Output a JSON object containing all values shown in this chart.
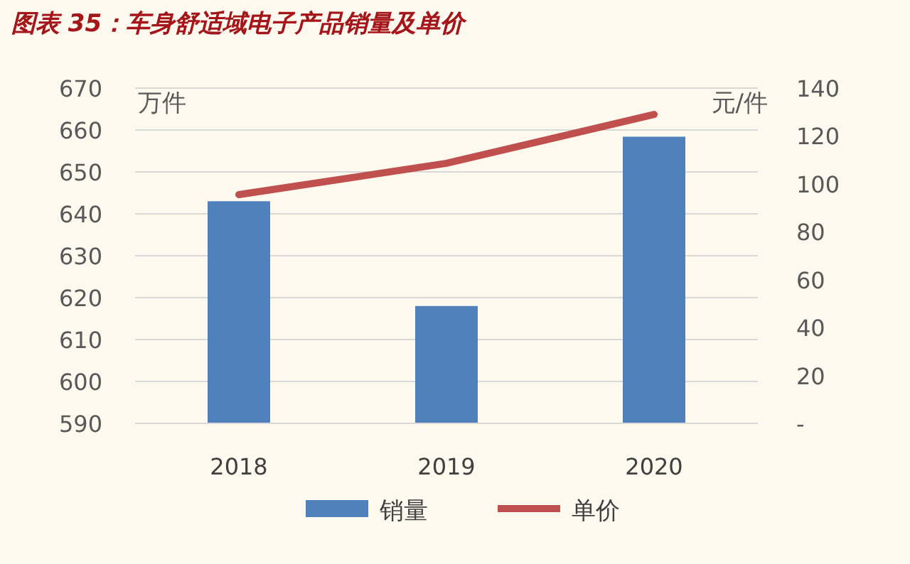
{
  "chart_data": {
    "type": "bar",
    "title": "图表 35：车身舒适域电子产品销量及单价",
    "categories": [
      "2018",
      "2019",
      "2020"
    ],
    "series": [
      {
        "name": "销量",
        "color": "#4f81bd",
        "values": [
          643,
          618,
          658.4
        ]
      },
      {
        "name": "单价",
        "type": "line",
        "axis": "y2",
        "color": "#c0504d",
        "values": [
          95.5,
          108.6,
          129
        ]
      }
    ],
    "ylabel": "万件",
    "y2label": "元/件",
    "ylim": [
      590,
      670
    ],
    "yticks": [
      590,
      600,
      610,
      620,
      630,
      640,
      650,
      660,
      670
    ],
    "y2lim": [
      0,
      140
    ],
    "y2ticks": [
      {
        "value": 0,
        "label": "-"
      },
      20,
      40,
      60,
      80,
      100,
      120,
      140
    ],
    "grid": "y",
    "legend": "bottom"
  }
}
